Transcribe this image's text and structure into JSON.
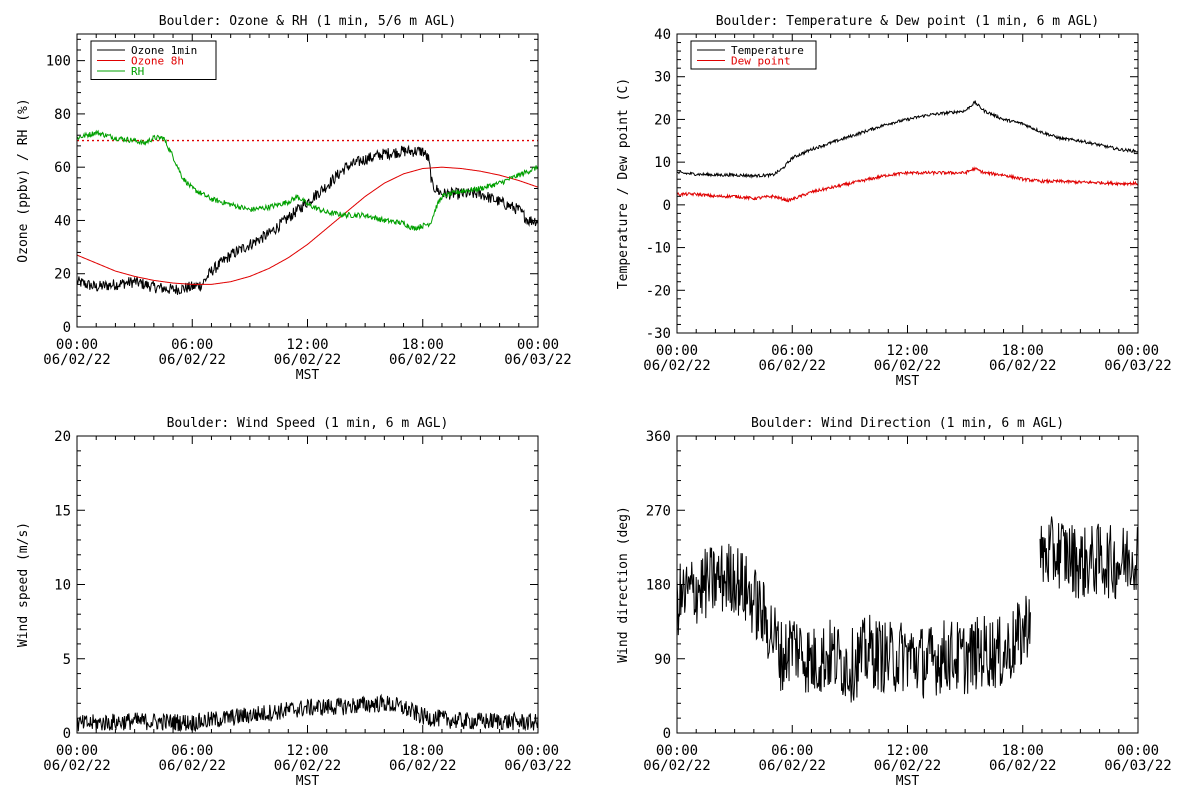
{
  "chart_data": [
    {
      "type": "line",
      "title": "Boulder: Ozone & RH (1 min, 5/6 m AGL)",
      "xlabel": "MST",
      "ylabel": "Ozone (ppbv) / RH (%)",
      "ylim": [
        0,
        110
      ],
      "xlim_hours": [
        0,
        24
      ],
      "yticks": [
        0,
        20,
        40,
        60,
        80,
        100
      ],
      "xticks": [
        {
          "hour": 0,
          "time": "00:00",
          "date": "06/02/22"
        },
        {
          "hour": 6,
          "time": "06:00",
          "date": "06/02/22"
        },
        {
          "hour": 12,
          "time": "12:00",
          "date": "06/02/22"
        },
        {
          "hour": 18,
          "time": "18:00",
          "date": "06/02/22"
        },
        {
          "hour": 24,
          "time": "00:00",
          "date": "06/03/22"
        }
      ],
      "legend_position": "top-left",
      "reference_line": {
        "y": 70,
        "color": "#e00000",
        "style": "dotted"
      },
      "series": [
        {
          "name": "Ozone 1min",
          "color": "#000000",
          "noise": 2.2,
          "points": [
            [
              0,
              17
            ],
            [
              1,
              15
            ],
            [
              2,
              16
            ],
            [
              3,
              17
            ],
            [
              4,
              15
            ],
            [
              5,
              14
            ],
            [
              6,
              15
            ],
            [
              6.5,
              16
            ],
            [
              7,
              21
            ],
            [
              8,
              27
            ],
            [
              9,
              31
            ],
            [
              10,
              35
            ],
            [
              11,
              41
            ],
            [
              11.5,
              44
            ],
            [
              12,
              47
            ],
            [
              13,
              53
            ],
            [
              14,
              60
            ],
            [
              15,
              63
            ],
            [
              16,
              65
            ],
            [
              17,
              66
            ],
            [
              18,
              66
            ],
            [
              18.3,
              63
            ],
            [
              18.5,
              53
            ],
            [
              19,
              50
            ],
            [
              20,
              50
            ],
            [
              21,
              50
            ],
            [
              22,
              47
            ],
            [
              23,
              44
            ],
            [
              23.5,
              40
            ],
            [
              24,
              40
            ]
          ]
        },
        {
          "name": "Ozone 8h",
          "color": "#e00000",
          "noise": 0,
          "points": [
            [
              0,
              27
            ],
            [
              1,
              24
            ],
            [
              2,
              21
            ],
            [
              3,
              19
            ],
            [
              4,
              17.5
            ],
            [
              5,
              16.5
            ],
            [
              6,
              16
            ],
            [
              7,
              16
            ],
            [
              8,
              17
            ],
            [
              9,
              19
            ],
            [
              10,
              22
            ],
            [
              11,
              26
            ],
            [
              12,
              31
            ],
            [
              13,
              37
            ],
            [
              14,
              43
            ],
            [
              15,
              49
            ],
            [
              16,
              54
            ],
            [
              17,
              57.5
            ],
            [
              18,
              59.5
            ],
            [
              19,
              60
            ],
            [
              20,
              59.5
            ],
            [
              21,
              58.5
            ],
            [
              22,
              57
            ],
            [
              23,
              55
            ],
            [
              24,
              52.5
            ]
          ]
        },
        {
          "name": "RH",
          "color": "#00a000",
          "noise": 1.0,
          "points": [
            [
              0,
              71
            ],
            [
              1,
              73
            ],
            [
              2,
              71
            ],
            [
              3,
              70
            ],
            [
              3.5,
              69
            ],
            [
              4,
              71
            ],
            [
              4.5,
              71
            ],
            [
              5,
              64
            ],
            [
              5.5,
              56
            ],
            [
              6,
              52
            ],
            [
              7,
              48
            ],
            [
              8,
              46
            ],
            [
              9,
              44
            ],
            [
              10,
              45
            ],
            [
              11,
              47
            ],
            [
              11.5,
              49
            ],
            [
              12,
              46
            ],
            [
              13,
              43
            ],
            [
              14,
              42
            ],
            [
              15,
              42
            ],
            [
              16,
              40
            ],
            [
              17,
              39
            ],
            [
              17.5,
              37
            ],
            [
              18,
              38
            ],
            [
              18.4,
              39
            ],
            [
              18.7,
              45
            ],
            [
              19,
              49
            ],
            [
              20,
              51
            ],
            [
              21,
              52
            ],
            [
              22,
              54
            ],
            [
              23,
              57
            ],
            [
              24,
              60
            ]
          ]
        }
      ]
    },
    {
      "type": "line",
      "title": "Boulder: Temperature & Dew point (1 min, 6 m AGL)",
      "xlabel": "MST",
      "ylabel": "Temperature / Dew point (C)",
      "ylim": [
        -30,
        40
      ],
      "xlim_hours": [
        0,
        24
      ],
      "yticks": [
        -30,
        -20,
        -10,
        0,
        10,
        20,
        30,
        40
      ],
      "xticks": [
        {
          "hour": 0,
          "time": "00:00",
          "date": "06/02/22"
        },
        {
          "hour": 6,
          "time": "06:00",
          "date": "06/02/22"
        },
        {
          "hour": 12,
          "time": "12:00",
          "date": "06/02/22"
        },
        {
          "hour": 18,
          "time": "18:00",
          "date": "06/02/22"
        },
        {
          "hour": 24,
          "time": "00:00",
          "date": "06/03/22"
        }
      ],
      "legend_position": "top-left",
      "series": [
        {
          "name": "Temperature",
          "color": "#000000",
          "noise": 0.35,
          "points": [
            [
              0,
              7.5
            ],
            [
              1,
              7.2
            ],
            [
              2,
              7
            ],
            [
              3,
              7
            ],
            [
              4,
              6.8
            ],
            [
              5,
              7
            ],
            [
              5.5,
              8.5
            ],
            [
              6,
              11
            ],
            [
              7,
              13
            ],
            [
              8,
              14.5
            ],
            [
              9,
              16
            ],
            [
              10,
              17.5
            ],
            [
              11,
              19
            ],
            [
              12,
              20
            ],
            [
              13,
              21
            ],
            [
              14,
              21.5
            ],
            [
              15,
              22
            ],
            [
              15.5,
              24
            ],
            [
              16,
              22
            ],
            [
              17,
              20
            ],
            [
              18,
              19
            ],
            [
              19,
              17
            ],
            [
              20,
              15.5
            ],
            [
              21,
              15
            ],
            [
              22,
              14
            ],
            [
              23,
              13
            ],
            [
              24,
              12.5
            ]
          ]
        },
        {
          "name": "Dew point",
          "color": "#e00000",
          "noise": 0.35,
          "points": [
            [
              0,
              2.5
            ],
            [
              1,
              2.5
            ],
            [
              2,
              2
            ],
            [
              3,
              2
            ],
            [
              4,
              1.5
            ],
            [
              5,
              2
            ],
            [
              5.8,
              1
            ],
            [
              6.3,
              1.8
            ],
            [
              7,
              3
            ],
            [
              8,
              4
            ],
            [
              9,
              5
            ],
            [
              10,
              6
            ],
            [
              11,
              7
            ],
            [
              12,
              7.5
            ],
            [
              13,
              7.5
            ],
            [
              14,
              7.5
            ],
            [
              15,
              7.5
            ],
            [
              15.5,
              8.5
            ],
            [
              16,
              7.5
            ],
            [
              17,
              7
            ],
            [
              18,
              6
            ],
            [
              19,
              5.5
            ],
            [
              20,
              5.5
            ],
            [
              21,
              5.3
            ],
            [
              22,
              5.2
            ],
            [
              23,
              5
            ],
            [
              24,
              5
            ]
          ]
        }
      ]
    },
    {
      "type": "line",
      "title": "Boulder: Wind Speed (1 min, 6 m AGL)",
      "xlabel": "MST",
      "ylabel": "Wind speed (m/s)",
      "ylim": [
        0,
        20
      ],
      "xlim_hours": [
        0,
        24
      ],
      "yticks": [
        0,
        5,
        10,
        15,
        20
      ],
      "xticks": [
        {
          "hour": 0,
          "time": "00:00",
          "date": "06/02/22"
        },
        {
          "hour": 6,
          "time": "06:00",
          "date": "06/02/22"
        },
        {
          "hour": 12,
          "time": "12:00",
          "date": "06/02/22"
        },
        {
          "hour": 18,
          "time": "18:00",
          "date": "06/02/22"
        },
        {
          "hour": 24,
          "time": "00:00",
          "date": "06/03/22"
        }
      ],
      "legend_position": "none",
      "series": [
        {
          "name": "",
          "color": "#000000",
          "noise": 0.6,
          "floor": 0,
          "points": [
            [
              0,
              0.6
            ],
            [
              3,
              0.8
            ],
            [
              6,
              0.7
            ],
            [
              9,
              1.2
            ],
            [
              12,
              1.7
            ],
            [
              14,
              1.8
            ],
            [
              16,
              2.0
            ],
            [
              17,
              1.7
            ],
            [
              18,
              1.1
            ],
            [
              20,
              0.8
            ],
            [
              22,
              0.8
            ],
            [
              24,
              0.7
            ]
          ]
        }
      ]
    },
    {
      "type": "line",
      "title": "Boulder: Wind Direction (1 min, 6 m AGL)",
      "xlabel": "MST",
      "ylabel": "Wind direction (deg)",
      "ylim": [
        0,
        360
      ],
      "xlim_hours": [
        0,
        24
      ],
      "yticks": [
        0,
        90,
        180,
        270,
        360
      ],
      "xticks": [
        {
          "hour": 0,
          "time": "00:00",
          "date": "06/02/22"
        },
        {
          "hour": 6,
          "time": "06:00",
          "date": "06/02/22"
        },
        {
          "hour": 12,
          "time": "12:00",
          "date": "06/02/22"
        },
        {
          "hour": 18,
          "time": "18:00",
          "date": "06/02/22"
        },
        {
          "hour": 24,
          "time": "00:00",
          "date": "06/03/22"
        }
      ],
      "legend_position": "none",
      "gaps_hours": [
        [
          18.4,
          18.9
        ]
      ],
      "series": [
        {
          "name": "",
          "color": "#000000",
          "noise": 45,
          "floor": 0,
          "ceil": 360,
          "points": [
            [
              0,
              160
            ],
            [
              1,
              175
            ],
            [
              2,
              185
            ],
            [
              3,
              190
            ],
            [
              4,
              160
            ],
            [
              5,
              120
            ],
            [
              5.5,
              90
            ],
            [
              6,
              110
            ],
            [
              7,
              85
            ],
            [
              8,
              95
            ],
            [
              9,
              80
            ],
            [
              10,
              100
            ],
            [
              11,
              90
            ],
            [
              12,
              95
            ],
            [
              13,
              85
            ],
            [
              14,
              95
            ],
            [
              15,
              90
            ],
            [
              16,
              100
            ],
            [
              17,
              95
            ],
            [
              18,
              120
            ],
            [
              18.3,
              140
            ],
            [
              19,
              215
            ],
            [
              20,
              220
            ],
            [
              21,
              205
            ],
            [
              22,
              210
            ],
            [
              23,
              205
            ],
            [
              24,
              220
            ]
          ]
        }
      ]
    }
  ]
}
